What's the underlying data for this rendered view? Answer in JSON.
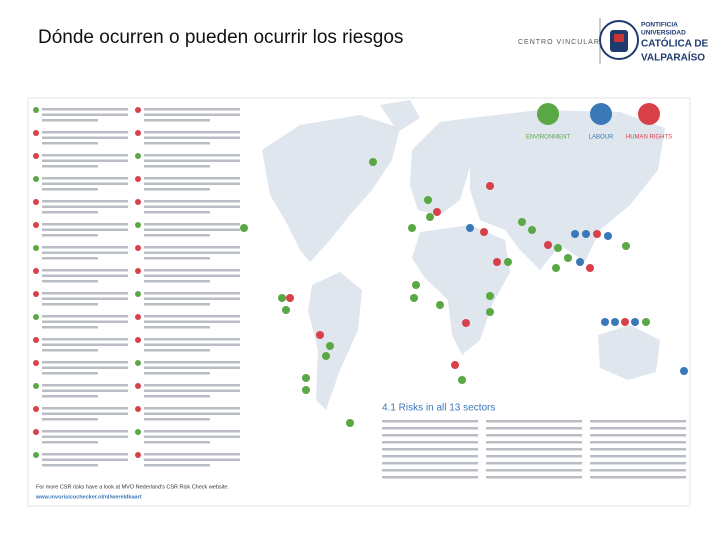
{
  "header": {
    "title": "Dónde ocurren o pueden ocurrir los riesgos",
    "logo": {
      "unit": "CENTRO VINCULAR",
      "lines": [
        "PONTIFICIA",
        "UNIVERSIDAD",
        "CATÓLICA DE",
        "VALPARAÍSO"
      ]
    }
  },
  "legend": [
    "ENVIRONMENT",
    "LABOUR",
    "HUMAN RIGHTS"
  ],
  "section_title": "4.1 Risks in all 13 sectors",
  "footer": {
    "text": "For more CSR risks have a look at MVO Nederland's CSR Risk Check website.",
    "link": "www.mvorisicochecker.nl/nl/wereldkaart"
  }
}
